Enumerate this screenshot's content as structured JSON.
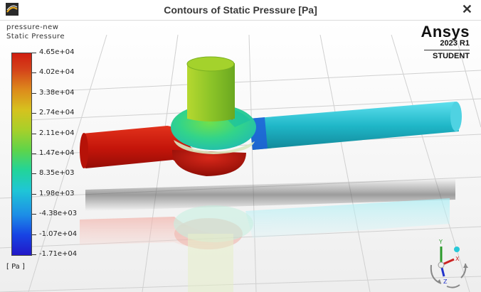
{
  "window": {
    "title": "Contours of Static Pressure [Pa]",
    "close_glyph": "✕"
  },
  "legend": {
    "line1": "pressure-new",
    "line2": "Static Pressure",
    "unit": "[ Pa ]",
    "labels": [
      "4.65e+04",
      "4.02e+04",
      "3.38e+04",
      "2.74e+04",
      "2.11e+04",
      "1.47e+04",
      "8.35e+03",
      "1.98e+03",
      "-4.38e+03",
      "-1.07e+04",
      "-1.71e+04"
    ]
  },
  "branding": {
    "name": "Ansys",
    "version": "2023 R1",
    "edition": "STUDENT"
  },
  "colors": {
    "inlet_pipe": "#c8190c",
    "outlet_pipe": "#1fb7c8",
    "valve_top": "#9ccc28",
    "background": "#fbfbfb"
  },
  "axes": {
    "x": "X",
    "y": "Y",
    "z": "Z"
  },
  "icons": [
    "app-icon",
    "close-icon",
    "axis-triad-icon"
  ]
}
